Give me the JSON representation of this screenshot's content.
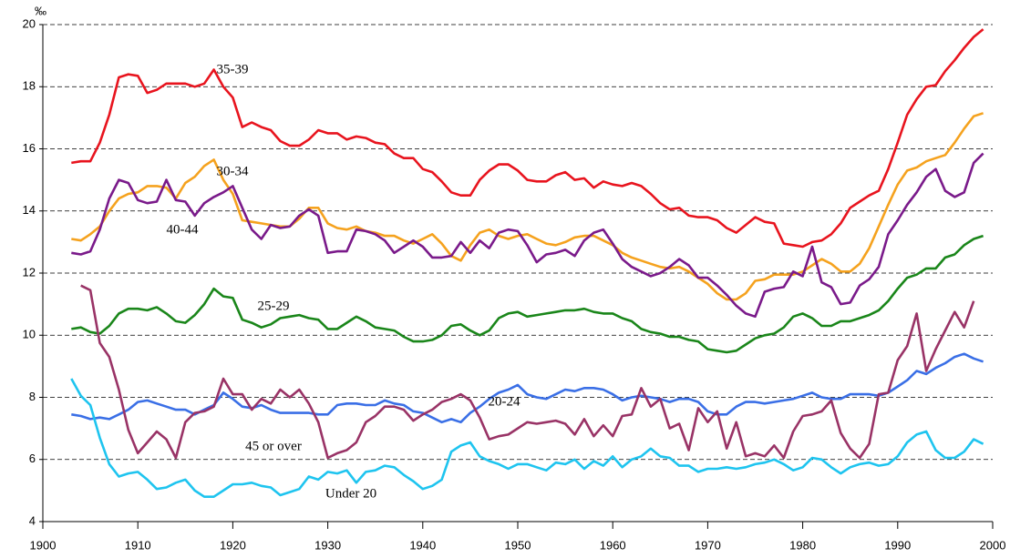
{
  "chart_data": {
    "type": "line",
    "y_unit": "‰",
    "x": [
      1903,
      1904,
      1905,
      1906,
      1907,
      1908,
      1909,
      1910,
      1911,
      1912,
      1913,
      1914,
      1915,
      1916,
      1917,
      1918,
      1919,
      1920,
      1921,
      1922,
      1923,
      1924,
      1925,
      1926,
      1927,
      1928,
      1929,
      1930,
      1931,
      1932,
      1933,
      1934,
      1935,
      1936,
      1937,
      1938,
      1939,
      1940,
      1941,
      1942,
      1943,
      1944,
      1945,
      1946,
      1947,
      1948,
      1949,
      1950,
      1951,
      1952,
      1953,
      1954,
      1955,
      1956,
      1957,
      1958,
      1959,
      1960,
      1961,
      1962,
      1963,
      1964,
      1965,
      1966,
      1967,
      1968,
      1969,
      1970,
      1971,
      1972,
      1973,
      1974,
      1975,
      1976,
      1977,
      1978,
      1979,
      1980,
      1981,
      1982,
      1983,
      1984,
      1985,
      1986,
      1987,
      1988,
      1989,
      1990,
      1991,
      1992,
      1993,
      1994,
      1995,
      1996,
      1997,
      1998,
      1999
    ],
    "xlim": [
      1900,
      2000
    ],
    "xticks": [
      1900,
      1910,
      1920,
      1930,
      1940,
      1950,
      1960,
      1970,
      1980,
      1990,
      2000
    ],
    "ylim": [
      4,
      20
    ],
    "yticks": [
      4,
      6,
      8,
      10,
      12,
      14,
      16,
      18,
      20
    ],
    "grid": true,
    "series": [
      {
        "name": "35-39",
        "color": "#e8141e",
        "values": [
          15.55,
          15.6,
          15.6,
          16.2,
          17.1,
          18.3,
          18.4,
          18.35,
          17.8,
          17.9,
          18.1,
          18.1,
          18.1,
          18.0,
          18.1,
          18.55,
          18.0,
          17.65,
          16.7,
          16.85,
          16.7,
          16.6,
          16.25,
          16.1,
          16.1,
          16.3,
          16.6,
          16.5,
          16.5,
          16.3,
          16.4,
          16.35,
          16.2,
          16.15,
          15.85,
          15.7,
          15.7,
          15.35,
          15.25,
          14.95,
          14.6,
          14.5,
          14.5,
          15.0,
          15.3,
          15.5,
          15.5,
          15.3,
          15.0,
          14.95,
          14.95,
          15.15,
          15.25,
          15.0,
          15.05,
          14.75,
          14.95,
          14.85,
          14.8,
          14.9,
          14.8,
          14.55,
          14.25,
          14.05,
          14.1,
          13.85,
          13.8,
          13.8,
          13.7,
          13.45,
          13.3,
          13.55,
          13.8,
          13.65,
          13.6,
          12.95,
          12.9,
          12.85,
          13.0,
          13.05,
          13.25,
          13.6,
          14.1,
          14.3,
          14.5,
          14.65,
          15.35,
          16.2,
          17.1,
          17.6,
          18.0,
          18.05,
          18.5,
          18.85,
          19.25,
          19.6,
          19.85
        ]
      },
      {
        "name": "30-34",
        "color": "#f5a21e",
        "values": [
          13.1,
          13.05,
          13.25,
          13.5,
          14.0,
          14.4,
          14.55,
          14.6,
          14.8,
          14.8,
          14.75,
          14.4,
          14.9,
          15.1,
          15.45,
          15.65,
          15.0,
          14.55,
          13.7,
          13.65,
          13.6,
          13.55,
          13.5,
          13.5,
          13.75,
          14.1,
          14.1,
          13.6,
          13.45,
          13.4,
          13.5,
          13.35,
          13.3,
          13.2,
          13.2,
          13.05,
          12.95,
          13.1,
          13.25,
          12.95,
          12.55,
          12.4,
          12.9,
          13.3,
          13.4,
          13.2,
          13.1,
          13.2,
          13.25,
          13.1,
          12.95,
          12.9,
          13.0,
          13.15,
          13.2,
          13.2,
          13.05,
          12.9,
          12.65,
          12.5,
          12.4,
          12.3,
          12.2,
          12.15,
          12.2,
          12.05,
          11.85,
          11.65,
          11.35,
          11.15,
          11.15,
          11.35,
          11.75,
          11.8,
          11.95,
          11.95,
          11.95,
          12.05,
          12.25,
          12.45,
          12.3,
          12.05,
          12.05,
          12.3,
          12.8,
          13.5,
          14.2,
          14.85,
          15.3,
          15.4,
          15.6,
          15.7,
          15.8,
          16.2,
          16.65,
          17.05,
          17.15
        ]
      },
      {
        "name": "40-44",
        "color": "#7a1a8a",
        "values": [
          12.65,
          12.6,
          12.7,
          13.4,
          14.4,
          15.0,
          14.9,
          14.35,
          14.25,
          14.3,
          15.0,
          14.35,
          14.3,
          13.85,
          14.25,
          14.45,
          14.6,
          14.8,
          14.1,
          13.4,
          13.1,
          13.55,
          13.45,
          13.5,
          13.85,
          14.05,
          13.85,
          12.65,
          12.7,
          12.7,
          13.4,
          13.35,
          13.25,
          13.05,
          12.65,
          12.85,
          13.05,
          12.85,
          12.5,
          12.5,
          12.55,
          13.0,
          12.65,
          13.05,
          12.8,
          13.3,
          13.4,
          13.35,
          12.9,
          12.35,
          12.6,
          12.65,
          12.75,
          12.55,
          13.05,
          13.3,
          13.4,
          12.95,
          12.45,
          12.2,
          12.05,
          11.9,
          12.0,
          12.2,
          12.45,
          12.25,
          11.85,
          11.85,
          11.6,
          11.3,
          10.95,
          10.7,
          10.6,
          11.4,
          11.5,
          11.55,
          12.05,
          11.9,
          12.85,
          11.7,
          11.55,
          11.0,
          11.05,
          11.6,
          11.8,
          12.2,
          13.25,
          13.7,
          14.2,
          14.6,
          15.1,
          15.35,
          14.65,
          14.45,
          14.6,
          15.55,
          15.85
        ]
      },
      {
        "name": "25-29",
        "color": "#1a861a",
        "values": [
          10.2,
          10.25,
          10.1,
          10.05,
          10.3,
          10.7,
          10.85,
          10.85,
          10.8,
          10.9,
          10.7,
          10.45,
          10.4,
          10.65,
          11.0,
          11.5,
          11.25,
          11.2,
          10.5,
          10.4,
          10.25,
          10.35,
          10.55,
          10.6,
          10.65,
          10.55,
          10.5,
          10.2,
          10.2,
          10.4,
          10.6,
          10.45,
          10.25,
          10.2,
          10.15,
          9.95,
          9.8,
          9.8,
          9.85,
          10.0,
          10.3,
          10.35,
          10.15,
          10.0,
          10.15,
          10.55,
          10.7,
          10.75,
          10.6,
          10.65,
          10.7,
          10.75,
          10.8,
          10.8,
          10.85,
          10.75,
          10.7,
          10.7,
          10.55,
          10.45,
          10.2,
          10.1,
          10.05,
          9.95,
          9.95,
          9.85,
          9.8,
          9.55,
          9.5,
          9.45,
          9.5,
          9.7,
          9.9,
          10.0,
          10.05,
          10.25,
          10.6,
          10.7,
          10.55,
          10.3,
          10.3,
          10.45,
          10.45,
          10.55,
          10.65,
          10.8,
          11.1,
          11.5,
          11.85,
          11.95,
          12.15,
          12.15,
          12.5,
          12.6,
          12.9,
          13.1,
          13.2
        ]
      },
      {
        "name": "20-24",
        "color": "#3a6fe6",
        "values": [
          7.45,
          7.4,
          7.3,
          7.35,
          7.3,
          7.45,
          7.6,
          7.85,
          7.9,
          7.8,
          7.7,
          7.6,
          7.6,
          7.45,
          7.6,
          7.75,
          8.15,
          7.95,
          7.7,
          7.65,
          7.75,
          7.6,
          7.5,
          7.5,
          7.5,
          7.5,
          7.45,
          7.45,
          7.75,
          7.8,
          7.8,
          7.75,
          7.75,
          7.9,
          7.8,
          7.75,
          7.55,
          7.5,
          7.35,
          7.2,
          7.3,
          7.2,
          7.5,
          7.7,
          7.95,
          8.15,
          8.25,
          8.4,
          8.1,
          8.0,
          7.95,
          8.1,
          8.25,
          8.2,
          8.3,
          8.3,
          8.25,
          8.1,
          7.9,
          8.0,
          8.05,
          8.0,
          7.95,
          7.85,
          7.95,
          7.95,
          7.85,
          7.55,
          7.45,
          7.45,
          7.7,
          7.85,
          7.85,
          7.8,
          7.85,
          7.9,
          7.95,
          8.05,
          8.15,
          8.0,
          7.95,
          7.95,
          8.1,
          8.1,
          8.1,
          8.05,
          8.15,
          8.35,
          8.55,
          8.85,
          8.75,
          8.95,
          9.1,
          9.3,
          9.4,
          9.25,
          9.15
        ]
      },
      {
        "name": "45 or over",
        "color": "#993366",
        "values": [
          null,
          11.6,
          11.45,
          9.75,
          9.3,
          8.25,
          6.95,
          6.2,
          6.55,
          6.9,
          6.65,
          6.05,
          7.2,
          7.5,
          7.55,
          7.7,
          8.6,
          8.1,
          8.1,
          7.6,
          7.95,
          7.8,
          8.25,
          8.0,
          8.25,
          7.8,
          7.2,
          6.05,
          6.2,
          6.3,
          6.55,
          7.2,
          7.4,
          7.7,
          7.7,
          7.6,
          7.25,
          7.45,
          7.6,
          7.85,
          7.95,
          8.1,
          7.9,
          7.35,
          6.65,
          6.75,
          6.8,
          7.0,
          7.2,
          7.15,
          7.2,
          7.25,
          7.15,
          6.8,
          7.3,
          6.75,
          7.1,
          6.75,
          7.4,
          7.45,
          8.3,
          7.7,
          7.95,
          7.0,
          7.15,
          6.3,
          7.65,
          7.2,
          7.55,
          6.35,
          7.2,
          6.1,
          6.2,
          6.1,
          6.45,
          6.05,
          6.9,
          7.4,
          7.45,
          7.55,
          7.9,
          6.85,
          6.35,
          6.05,
          6.5,
          8.1,
          8.15,
          9.2,
          9.65,
          10.7,
          8.85,
          9.55,
          10.15,
          10.75,
          10.25,
          11.1,
          null
        ]
      },
      {
        "name": "Under 20",
        "color": "#1ec4ef",
        "values": [
          8.6,
          8.05,
          7.75,
          6.7,
          5.85,
          5.45,
          5.55,
          5.6,
          5.35,
          5.05,
          5.1,
          5.25,
          5.35,
          5.0,
          4.8,
          4.8,
          5.0,
          5.2,
          5.2,
          5.25,
          5.15,
          5.1,
          4.85,
          4.95,
          5.05,
          5.45,
          5.35,
          5.6,
          5.55,
          5.65,
          5.25,
          5.6,
          5.65,
          5.8,
          5.75,
          5.5,
          5.3,
          5.05,
          5.15,
          5.35,
          6.25,
          6.45,
          6.55,
          6.1,
          5.95,
          5.85,
          5.7,
          5.85,
          5.85,
          5.75,
          5.65,
          5.9,
          5.85,
          6.0,
          5.7,
          5.95,
          5.8,
          6.1,
          5.75,
          6.0,
          6.1,
          6.35,
          6.1,
          6.05,
          5.8,
          5.8,
          5.6,
          5.7,
          5.7,
          5.75,
          5.7,
          5.75,
          5.85,
          5.9,
          6.0,
          5.85,
          5.65,
          5.75,
          6.05,
          6.0,
          5.75,
          5.55,
          5.75,
          5.85,
          5.9,
          5.8,
          5.85,
          6.1,
          6.55,
          6.8,
          6.9,
          6.3,
          6.05,
          6.05,
          6.25,
          6.65,
          6.5
        ]
      }
    ]
  }
}
